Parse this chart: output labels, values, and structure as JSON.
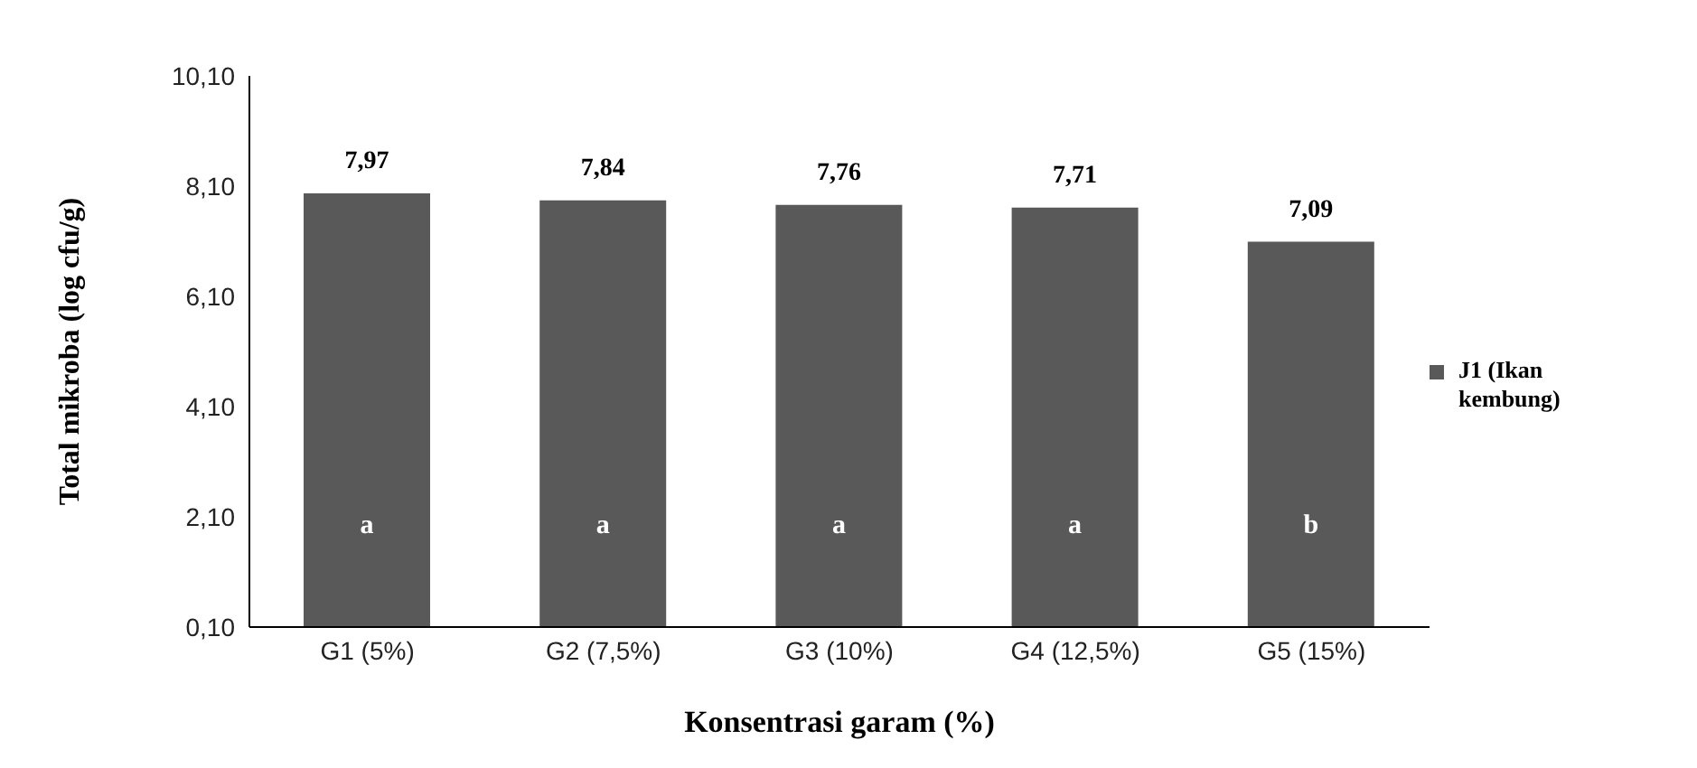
{
  "chart_data": {
    "type": "bar",
    "xlabel": "Konsentrasi garam (%)",
    "ylabel": "Total mikroba (log cfu/g)",
    "categories": [
      "G1 (5%)",
      "G2 (7,5%)",
      "G3 (10%)",
      "G4 (12,5%)",
      "G5 (15%)"
    ],
    "series": [
      {
        "name": "J1 (Ikan kembung)",
        "color": "#595959",
        "values": [
          7.97,
          7.84,
          7.76,
          7.71,
          7.09
        ],
        "value_labels": [
          "7,97",
          "7,84",
          "7,76",
          "7,71",
          "7,09"
        ]
      }
    ],
    "ylim": [
      0.1,
      10.1
    ],
    "yticks": [
      {
        "value": 0.1,
        "label": "0,10"
      },
      {
        "value": 2.1,
        "label": "2,10"
      },
      {
        "value": 4.1,
        "label": "4,10"
      },
      {
        "value": 6.1,
        "label": "6,10"
      },
      {
        "value": 8.1,
        "label": "8,10"
      },
      {
        "value": 10.1,
        "label": "10,10"
      }
    ],
    "annotations": [
      "a",
      "a",
      "a",
      "a",
      "b"
    ],
    "grid": false,
    "legend": "right"
  }
}
